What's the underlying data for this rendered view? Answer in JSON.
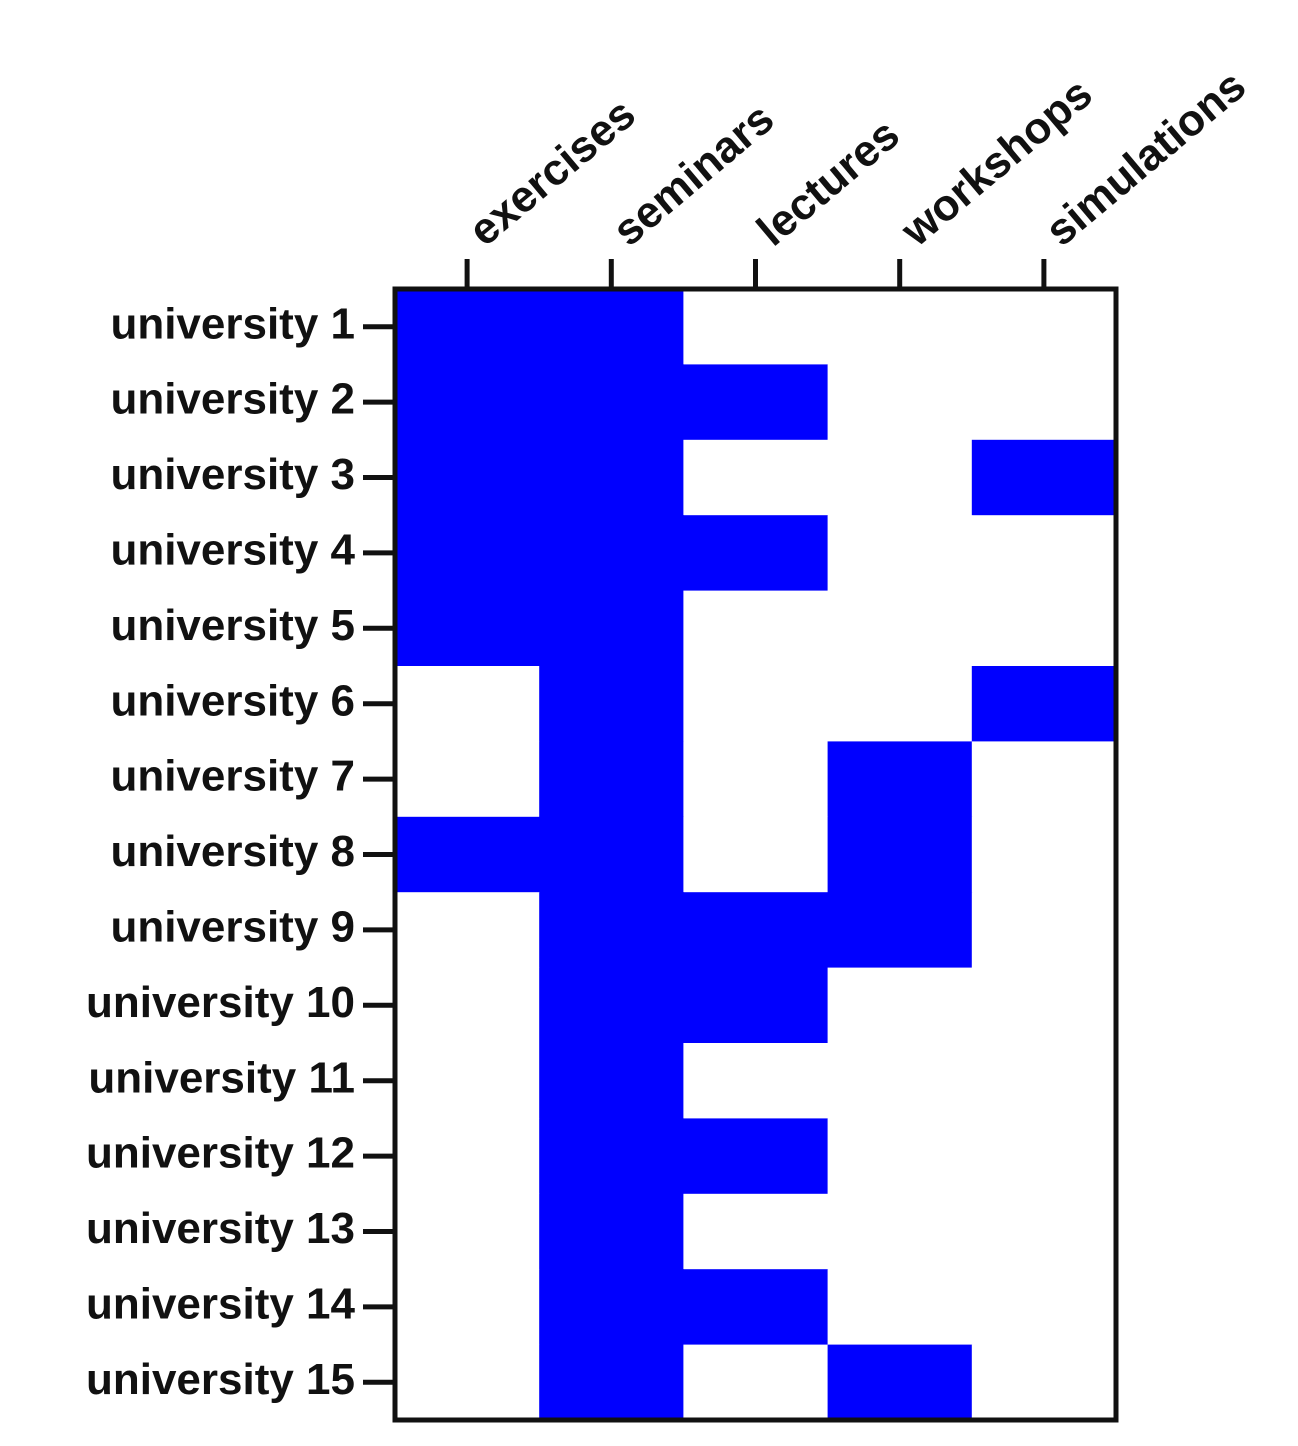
{
  "chart_data": {
    "type": "heatmap",
    "x_categories": [
      "exercises",
      "seminars",
      "lectures",
      "workshops",
      "simulations"
    ],
    "y_categories": [
      "university 1",
      "university 2",
      "university 3",
      "university 4",
      "university 5",
      "university 6",
      "university 7",
      "university 8",
      "university 9",
      "university 10",
      "university 11",
      "university 12",
      "university 13",
      "university 14",
      "university 15"
    ],
    "values": [
      [
        1,
        1,
        0,
        0,
        0
      ],
      [
        1,
        1,
        1,
        0,
        0
      ],
      [
        1,
        1,
        0,
        0,
        1
      ],
      [
        1,
        1,
        1,
        0,
        0
      ],
      [
        1,
        1,
        0,
        0,
        0
      ],
      [
        0,
        1,
        0,
        0,
        1
      ],
      [
        0,
        1,
        0,
        1,
        0
      ],
      [
        1,
        1,
        0,
        1,
        0
      ],
      [
        0,
        1,
        1,
        1,
        0
      ],
      [
        0,
        1,
        1,
        0,
        0
      ],
      [
        0,
        1,
        0,
        0,
        0
      ],
      [
        0,
        1,
        1,
        0,
        0
      ],
      [
        0,
        1,
        0,
        0,
        0
      ],
      [
        0,
        1,
        1,
        0,
        0
      ],
      [
        0,
        1,
        0,
        1,
        0
      ]
    ],
    "color": "#0000ff",
    "empty_color": "#ffffff"
  }
}
